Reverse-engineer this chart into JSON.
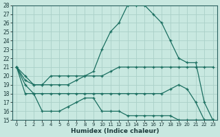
{
  "xlabel": "Humidex (Indice chaleur)",
  "xlim": [
    -0.5,
    23.5
  ],
  "ylim": [
    15,
    28
  ],
  "yticks": [
    15,
    16,
    17,
    18,
    19,
    20,
    21,
    22,
    23,
    24,
    25,
    26,
    27,
    28
  ],
  "xticks": [
    0,
    1,
    2,
    3,
    4,
    5,
    6,
    7,
    8,
    9,
    10,
    11,
    12,
    13,
    14,
    15,
    16,
    17,
    18,
    19,
    20,
    21,
    22,
    23
  ],
  "bg_color": "#c8e8e0",
  "grid_color": "#aad0c8",
  "line_color": "#1a6e60",
  "lines": [
    {
      "x": [
        0,
        1,
        2,
        3,
        4,
        5,
        6,
        7,
        8,
        9,
        10,
        11,
        12,
        13,
        14,
        15,
        16,
        17,
        18,
        19,
        20,
        21,
        22,
        23
      ],
      "y": [
        21,
        20,
        19,
        19,
        20,
        20,
        20,
        20,
        20,
        20.5,
        23,
        25,
        26,
        28,
        28,
        28,
        27,
        26,
        24,
        22,
        21.5,
        21.5,
        17,
        15
      ]
    },
    {
      "x": [
        0,
        1,
        2,
        3,
        4,
        5,
        6,
        7,
        8,
        9,
        10,
        11,
        12,
        13,
        14,
        15,
        16,
        17,
        18,
        19,
        20,
        21,
        22,
        23
      ],
      "y": [
        21,
        19.5,
        19,
        19,
        19,
        19,
        19,
        19.5,
        20,
        20,
        20,
        20.5,
        21,
        21,
        21,
        21,
        21,
        21,
        21,
        21,
        21,
        21,
        21,
        21
      ]
    },
    {
      "x": [
        0,
        1,
        2,
        3,
        4,
        5,
        6,
        7,
        8,
        9,
        10,
        11,
        12,
        13,
        14,
        15,
        16,
        17,
        18,
        19,
        20,
        21,
        22,
        23
      ],
      "y": [
        21,
        18,
        18,
        18,
        18,
        18,
        18,
        18,
        18,
        18,
        18,
        18,
        18,
        18,
        18,
        18,
        18,
        18,
        18.5,
        19,
        18.5,
        17,
        15,
        15
      ]
    },
    {
      "x": [
        0,
        1,
        2,
        3,
        4,
        5,
        6,
        7,
        8,
        9,
        10,
        11,
        12,
        13,
        14,
        15,
        16,
        17,
        18,
        19,
        20,
        21,
        22,
        23
      ],
      "y": [
        21,
        19,
        18,
        16,
        16,
        16,
        16.5,
        17,
        17.5,
        17.5,
        16,
        16,
        16,
        15.5,
        15.5,
        15.5,
        15.5,
        15.5,
        15.5,
        15,
        15,
        15,
        15,
        15
      ]
    }
  ]
}
